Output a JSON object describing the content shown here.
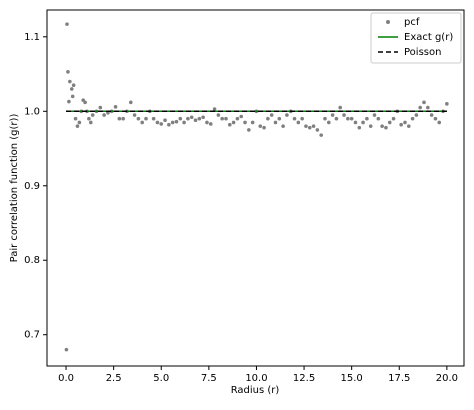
{
  "chart_data": {
    "type": "scatter",
    "xlabel": "Radius (r)",
    "ylabel": "Pair correlation function (g(r))",
    "xlim": [
      -1.0,
      20.9
    ],
    "ylim": [
      0.658,
      1.136
    ],
    "xticks": [
      {
        "value": 0,
        "label": "0.0"
      },
      {
        "value": 2.5,
        "label": "2.5"
      },
      {
        "value": 5,
        "label": "5.0"
      },
      {
        "value": 7.5,
        "label": "7.5"
      },
      {
        "value": 10,
        "label": "10.0"
      },
      {
        "value": 12.5,
        "label": "12.5"
      },
      {
        "value": 15,
        "label": "15.0"
      },
      {
        "value": 17.5,
        "label": "17.5"
      },
      {
        "value": 20,
        "label": "20.0"
      }
    ],
    "yticks": [
      {
        "value": 0.7,
        "label": "0.7"
      },
      {
        "value": 0.8,
        "label": "0.8"
      },
      {
        "value": 0.9,
        "label": "0.9"
      },
      {
        "value": 1.0,
        "label": "1.0"
      },
      {
        "value": 1.1,
        "label": "1.1"
      }
    ],
    "legend": "upper right",
    "series": [
      {
        "name": "pcf",
        "type": "scatter",
        "color": "#808080",
        "x": [
          0.02,
          0.05,
          0.1,
          0.15,
          0.2,
          0.3,
          0.35,
          0.4,
          0.5,
          0.6,
          0.7,
          0.8,
          0.9,
          1.0,
          1.1,
          1.2,
          1.3,
          1.4,
          1.6,
          1.8,
          2.0,
          2.2,
          2.4,
          2.6,
          2.8,
          3.0,
          3.2,
          3.4,
          3.6,
          3.8,
          4.0,
          4.2,
          4.4,
          4.6,
          4.8,
          5.0,
          5.2,
          5.4,
          5.6,
          5.8,
          6.0,
          6.2,
          6.4,
          6.6,
          6.8,
          7.0,
          7.2,
          7.4,
          7.6,
          7.8,
          8.0,
          8.2,
          8.4,
          8.6,
          8.8,
          9.0,
          9.2,
          9.4,
          9.6,
          9.8,
          10.0,
          10.2,
          10.4,
          10.6,
          10.8,
          11.0,
          11.2,
          11.4,
          11.6,
          11.8,
          12.0,
          12.2,
          12.4,
          12.6,
          12.8,
          13.0,
          13.2,
          13.4,
          13.6,
          13.8,
          14.0,
          14.2,
          14.4,
          14.6,
          14.8,
          15.0,
          15.2,
          15.4,
          15.6,
          15.8,
          16.0,
          16.2,
          16.4,
          16.6,
          16.8,
          17.0,
          17.2,
          17.4,
          17.6,
          17.8,
          18.0,
          18.2,
          18.4,
          18.6,
          18.8,
          19.0,
          19.2,
          19.4,
          19.6,
          19.8,
          20.0
        ],
        "values": [
          0.68,
          1.117,
          1.053,
          1.013,
          1.04,
          1.03,
          1.02,
          1.035,
          0.99,
          0.98,
          0.985,
          1.0,
          1.015,
          1.012,
          1.0,
          0.99,
          0.985,
          0.995,
          1.0,
          1.005,
          0.995,
          0.998,
          1.0,
          1.006,
          0.99,
          0.99,
          1.0,
          1.012,
          0.995,
          0.99,
          0.985,
          0.99,
          1.0,
          0.99,
          0.985,
          0.983,
          0.988,
          0.982,
          0.985,
          0.986,
          0.99,
          0.985,
          0.99,
          0.992,
          0.988,
          0.99,
          0.992,
          0.985,
          0.983,
          1.003,
          0.995,
          0.99,
          0.99,
          0.982,
          0.985,
          0.99,
          0.993,
          0.985,
          0.975,
          0.985,
          1.0,
          0.98,
          0.978,
          0.99,
          0.995,
          0.985,
          0.99,
          0.98,
          0.995,
          1.0,
          0.99,
          0.985,
          0.99,
          0.98,
          0.978,
          0.98,
          0.975,
          0.968,
          0.99,
          0.985,
          0.995,
          0.99,
          1.005,
          0.995,
          0.99,
          0.99,
          0.985,
          0.978,
          0.985,
          0.99,
          0.98,
          0.995,
          0.99,
          0.98,
          0.978,
          0.985,
          0.99,
          1.0,
          0.982,
          0.985,
          0.98,
          0.99,
          0.995,
          1.005,
          1.012,
          1.005,
          0.995,
          0.99,
          0.985,
          1.0,
          1.01
        ]
      },
      {
        "name": "Exact g(r)",
        "type": "line",
        "color": "#008000",
        "x": [
          0,
          20
        ],
        "values": [
          1.0,
          1.0
        ]
      },
      {
        "name": "Poisson",
        "type": "dashed",
        "color": "#000000",
        "x": [
          0,
          20
        ],
        "values": [
          1.0,
          1.0
        ]
      }
    ]
  }
}
